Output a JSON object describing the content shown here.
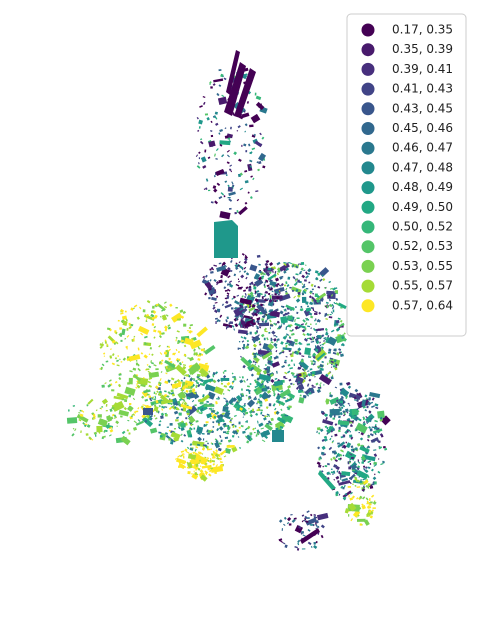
{
  "legend": {
    "items": [
      {
        "label": "0.17, 0.35",
        "color": "#440154"
      },
      {
        "label": "0.35, 0.39",
        "color": "#481a6c"
      },
      {
        "label": "0.39, 0.41",
        "color": "#472f7d"
      },
      {
        "label": "0.41, 0.43",
        "color": "#414487"
      },
      {
        "label": "0.43, 0.45",
        "color": "#39568c"
      },
      {
        "label": "0.45, 0.46",
        "color": "#31688e"
      },
      {
        "label": "0.46, 0.47",
        "color": "#2a788e"
      },
      {
        "label": "0.47, 0.48",
        "color": "#23888e"
      },
      {
        "label": "0.48, 0.49",
        "color": "#1f988b"
      },
      {
        "label": "0.49, 0.50",
        "color": "#22a884"
      },
      {
        "label": "0.50, 0.52",
        "color": "#35b779"
      },
      {
        "label": "0.52, 0.53",
        "color": "#54c568"
      },
      {
        "label": "0.53, 0.55",
        "color": "#7ad151"
      },
      {
        "label": "0.55, 0.57",
        "color": "#a5db36"
      },
      {
        "label": "0.57, 0.64",
        "color": "#fde725"
      }
    ]
  }
}
